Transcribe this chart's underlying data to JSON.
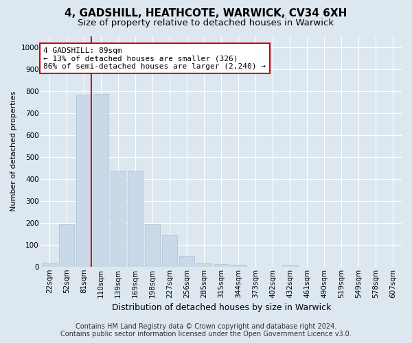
{
  "title": "4, GADSHILL, HEATHCOTE, WARWICK, CV34 6XH",
  "subtitle": "Size of property relative to detached houses in Warwick",
  "xlabel": "Distribution of detached houses by size in Warwick",
  "ylabel": "Number of detached properties",
  "categories": [
    "22sqm",
    "52sqm",
    "81sqm",
    "110sqm",
    "139sqm",
    "169sqm",
    "198sqm",
    "227sqm",
    "256sqm",
    "285sqm",
    "315sqm",
    "344sqm",
    "373sqm",
    "402sqm",
    "432sqm",
    "461sqm",
    "490sqm",
    "519sqm",
    "549sqm",
    "578sqm",
    "607sqm"
  ],
  "values": [
    18,
    193,
    783,
    785,
    435,
    435,
    192,
    143,
    50,
    18,
    12,
    8,
    0,
    0,
    10,
    0,
    0,
    0,
    0,
    0,
    0
  ],
  "bar_color": "#cad9e8",
  "bar_edgecolor": "#aac0d5",
  "vline_x_index": 2,
  "vline_color": "#cc0000",
  "annotation_line1": "4 GADSHILL: 89sqm",
  "annotation_line2": "← 13% of detached houses are smaller (326)",
  "annotation_line3": "86% of semi-detached houses are larger (2,240) →",
  "annotation_box_edgecolor": "#cc0000",
  "annotation_box_facecolor": "#ffffff",
  "ylim": [
    0,
    1050
  ],
  "yticks": [
    0,
    100,
    200,
    300,
    400,
    500,
    600,
    700,
    800,
    900,
    1000
  ],
  "background_color": "#dde7f0",
  "axes_background_color": "#dde7f0",
  "footer_line1": "Contains HM Land Registry data © Crown copyright and database right 2024.",
  "footer_line2": "Contains public sector information licensed under the Open Government Licence v3.0.",
  "title_fontsize": 11,
  "subtitle_fontsize": 9.5,
  "xlabel_fontsize": 9,
  "ylabel_fontsize": 8,
  "tick_fontsize": 7.5,
  "annotation_fontsize": 8,
  "footer_fontsize": 7
}
